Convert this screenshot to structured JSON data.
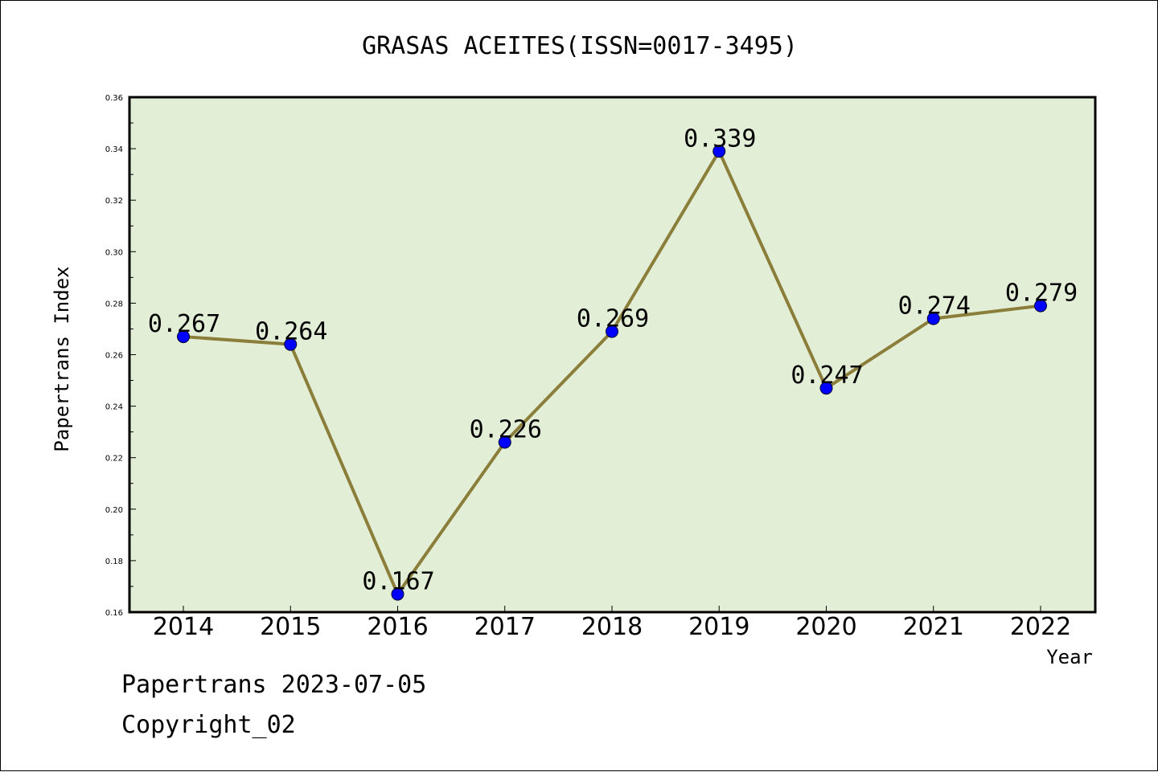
{
  "chart_data": {
    "type": "line",
    "title": "GRASAS ACEITES(ISSN=0017-3495)",
    "xlabel": "Year",
    "ylabel": "Papertrans Index",
    "categories": [
      "2014",
      "2015",
      "2016",
      "2017",
      "2018",
      "2019",
      "2020",
      "2021",
      "2022"
    ],
    "values": [
      0.267,
      0.264,
      0.167,
      0.226,
      0.269,
      0.339,
      0.247,
      0.274,
      0.279
    ],
    "data_labels": [
      "0.267",
      "0.264",
      "0.167",
      "0.226",
      "0.269",
      "0.339",
      "0.247",
      "0.274",
      "0.279"
    ],
    "ylim": [
      0.16,
      0.36
    ],
    "yticks": [
      "0.16",
      "0.18",
      "0.20",
      "0.22",
      "0.24",
      "0.26",
      "0.28",
      "0.30",
      "0.32",
      "0.34",
      "0.36"
    ],
    "grid": false,
    "colors": {
      "plot_background": "#e2efd6",
      "line": "#8b7d3a",
      "marker": "#0000ff"
    }
  },
  "footer": {
    "line1": "Papertrans 2023-07-05",
    "line2": "Copyright_02"
  }
}
